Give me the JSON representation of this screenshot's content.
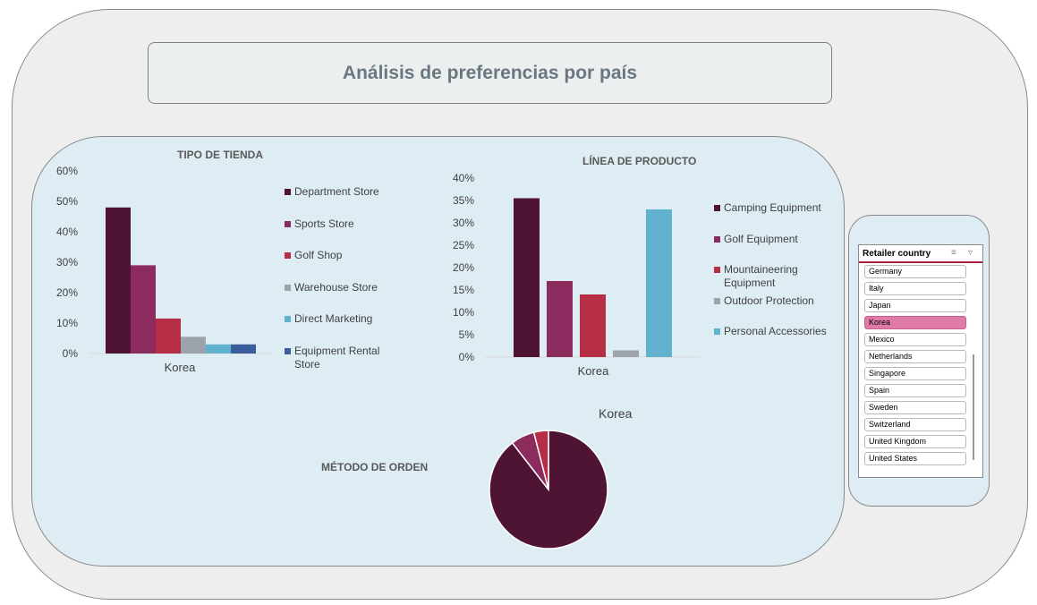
{
  "dashboard": {
    "title": "Análisis de preferencias por país"
  },
  "chart_data": [
    {
      "type": "bar",
      "title": "TIPO DE TIENDA",
      "categories": [
        "Korea"
      ],
      "series": [
        {
          "name": "Department Store",
          "values": [
            48
          ],
          "color": "#4f1433"
        },
        {
          "name": "Sports Store",
          "values": [
            29
          ],
          "color": "#8c2b5e"
        },
        {
          "name": "Golf Shop",
          "values": [
            11.5
          ],
          "color": "#b52e45"
        },
        {
          "name": "Warehouse Store",
          "values": [
            5.5
          ],
          "color": "#9ca3ab"
        },
        {
          "name": "Direct Marketing",
          "values": [
            3
          ],
          "color": "#60b2cf"
        },
        {
          "name": "Equipment Rental Store",
          "values": [
            3
          ],
          "color": "#3a5d9c"
        }
      ],
      "ylim": [
        0,
        60
      ],
      "yticks": [
        "60%",
        "50%",
        "40%",
        "30%",
        "20%",
        "10%",
        "0%"
      ],
      "legend": "right"
    },
    {
      "type": "bar",
      "title": "LÍNEA DE PRODUCTO",
      "categories": [
        "Korea"
      ],
      "series": [
        {
          "name": "Camping Equipment",
          "values": [
            35.5
          ],
          "color": "#4f1433"
        },
        {
          "name": "Golf Equipment",
          "values": [
            17
          ],
          "color": "#8c2b5e"
        },
        {
          "name": "Mountaineering Equipment",
          "values": [
            14
          ],
          "color": "#b52e45"
        },
        {
          "name": "Outdoor Protection",
          "values": [
            1.5
          ],
          "color": "#9ca3ab"
        },
        {
          "name": "Personal Accessories",
          "values": [
            33
          ],
          "color": "#60b2cf"
        }
      ],
      "ylim": [
        0,
        40
      ],
      "yticks": [
        "40%",
        "35%",
        "30%",
        "25%",
        "20%",
        "15%",
        "10%",
        "5%",
        "0%"
      ],
      "legend": "right"
    },
    {
      "type": "pie",
      "title": "Korea",
      "label": "MÉTODO DE ORDEN",
      "slices": [
        {
          "value": 89.5,
          "color": "#4f1433"
        },
        {
          "value": 6.5,
          "color": "#8c2b5e"
        },
        {
          "value": 4,
          "color": "#b52e45"
        }
      ]
    }
  ],
  "slicer": {
    "title": "Retailer country",
    "items": [
      "Germany",
      "Italy",
      "Japan",
      "Korea",
      "Mexico",
      "Netherlands",
      "Singapore",
      "Spain",
      "Sweden",
      "Switzerland",
      "United Kingdom",
      "United States"
    ],
    "selected": "Korea",
    "icons": {
      "multi_select": "multi-select-icon",
      "clear_filter": "clear-filter-icon"
    }
  }
}
